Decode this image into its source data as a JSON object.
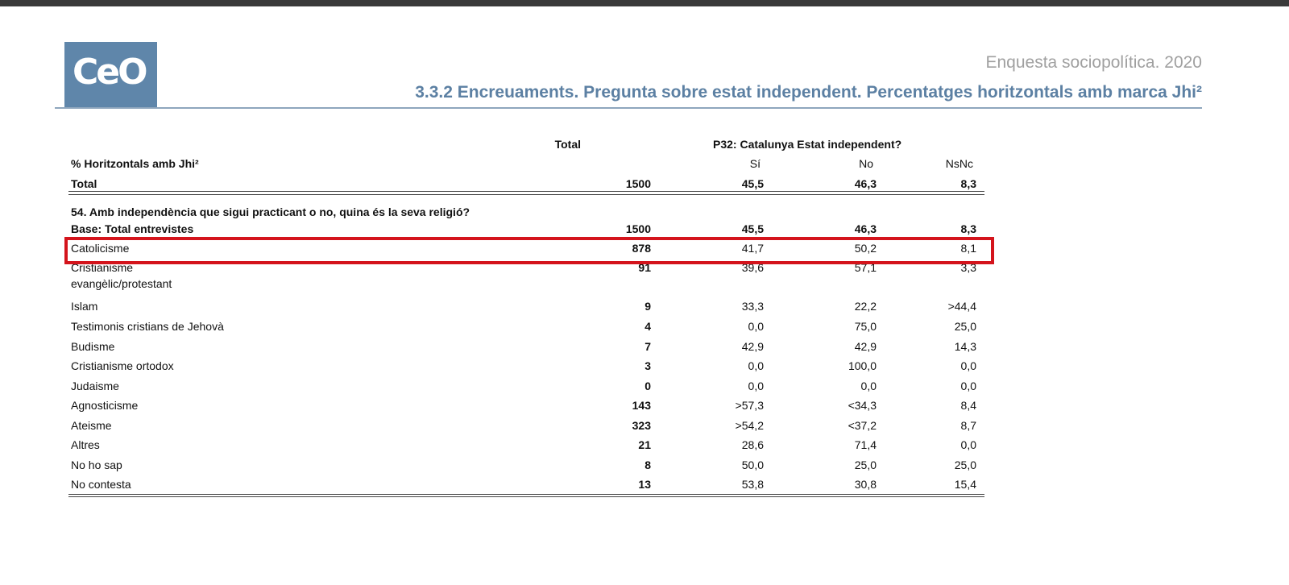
{
  "header": {
    "logo": "CeO",
    "subtitle": "Enquesta sociopolítica. 2020",
    "title": "3.3.2 Encreuaments. Pregunta sobre estat independent. Percentatges horitzontals amb marca Jhi²"
  },
  "table": {
    "header_total": "Total",
    "header_question": "P32: Catalunya Estat independent?",
    "header_label": "% Horitzontals amb Jhi²",
    "columns": [
      "Sí",
      "No",
      "NsNc"
    ],
    "total_row": [
      "Total",
      "1500",
      "45,5",
      "46,3",
      "8,3"
    ],
    "question": "54. Amb independència que  sigui practicant o no, quina  és la seva religió?",
    "base_row": [
      "Base: Total entrevistes",
      "1500",
      "45,5",
      "46,3",
      "8,3"
    ],
    "rows": [
      [
        "Catolicisme",
        "878",
        "41,7",
        "50,2",
        "8,1"
      ],
      [
        "Cristianisme\nevangèlic/protestant",
        "91",
        "39,6",
        "57,1",
        "3,3"
      ],
      [
        "Islam",
        "9",
        "33,3",
        "22,2",
        ">44,4"
      ],
      [
        "Testimonis cristians de Jehovà",
        "4",
        "0,0",
        "75,0",
        "25,0"
      ],
      [
        "Budisme",
        "7",
        "42,9",
        "42,9",
        "14,3"
      ],
      [
        "Cristianisme ortodox",
        "3",
        "0,0",
        "100,0",
        "0,0"
      ],
      [
        "Judaisme",
        "0",
        "0,0",
        "0,0",
        "0,0"
      ],
      [
        "Agnosticisme",
        "143",
        ">57,3",
        "<34,3",
        "8,4"
      ],
      [
        "Ateisme",
        "323",
        ">54,2",
        "<37,2",
        "8,7"
      ],
      [
        "Altres",
        "21",
        "28,6",
        "71,4",
        "0,0"
      ],
      [
        "No ho sap",
        "8",
        "50,0",
        "25,0",
        "25,0"
      ],
      [
        "No contesta",
        "13",
        "53,8",
        "30,8",
        "15,4"
      ]
    ]
  }
}
